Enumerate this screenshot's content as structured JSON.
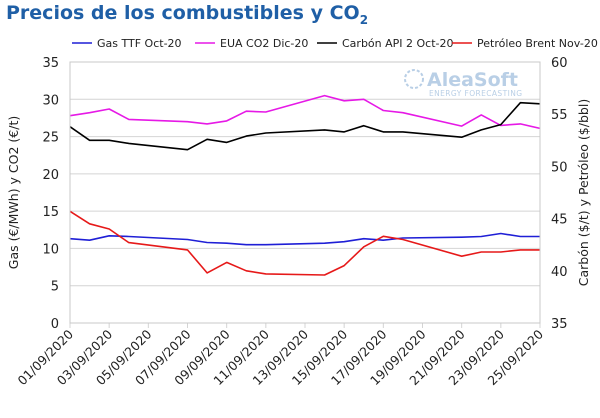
{
  "chart_data": {
    "type": "line",
    "title": "Precios de los combustibles y CO",
    "title_subscript": "2",
    "watermark": {
      "brand": "AleaSoft",
      "tagline": "ENERGY FORECASTING"
    },
    "x": [
      "01/09/2020",
      "02/09/2020",
      "03/09/2020",
      "04/09/2020",
      "07/09/2020",
      "08/09/2020",
      "09/09/2020",
      "10/09/2020",
      "11/09/2020",
      "14/09/2020",
      "15/09/2020",
      "16/09/2020",
      "17/09/2020",
      "18/09/2020",
      "21/09/2020",
      "22/09/2020",
      "23/09/2020",
      "24/09/2020",
      "25/09/2020"
    ],
    "x_tick_labels": [
      "01/09/2020",
      "03/09/2020",
      "05/09/2020",
      "07/09/2020",
      "09/09/2020",
      "11/09/2020",
      "13/09/2020",
      "15/09/2020",
      "17/09/2020",
      "19/09/2020",
      "21/09/2020",
      "23/09/2020",
      "25/09/2020"
    ],
    "xlim": [
      "01/09/2020",
      "25/09/2020"
    ],
    "ylabel_left": "Gas (€/MWh) y CO2 (€/t)",
    "ylabel_right": "Carbón ($/t) y Petróleo ($/bbl)",
    "ylim_left": [
      0,
      35
    ],
    "yticks_left": [
      0,
      5,
      10,
      15,
      20,
      25,
      30,
      35
    ],
    "ylim_right": [
      35,
      60
    ],
    "yticks_right": [
      35,
      40,
      45,
      50,
      55,
      60
    ],
    "grid": "horizontal",
    "legend_position": "top",
    "series": [
      {
        "name": "Gas TTF Oct-20",
        "axis": "left",
        "color": "#1f1fd6",
        "values": [
          11.3,
          11.1,
          11.7,
          11.6,
          11.2,
          10.8,
          10.7,
          10.5,
          10.5,
          10.7,
          10.9,
          11.3,
          11.1,
          11.4,
          11.5,
          11.6,
          12.0,
          11.6,
          11.6
        ]
      },
      {
        "name": "EUA CO2 Dic-20",
        "axis": "left",
        "color": "#e619e6",
        "values": [
          27.8,
          28.2,
          28.7,
          27.3,
          27.0,
          26.7,
          27.1,
          28.4,
          28.3,
          30.5,
          29.8,
          30.0,
          28.5,
          28.2,
          26.4,
          27.9,
          26.5,
          26.7,
          26.1
        ]
      },
      {
        "name": "Carbón API 2 Oct-20",
        "axis": "right",
        "color": "#000000",
        "values": [
          53.8,
          52.5,
          52.5,
          52.2,
          51.6,
          52.6,
          52.3,
          52.9,
          53.2,
          53.5,
          53.3,
          53.9,
          53.3,
          53.3,
          52.8,
          53.5,
          54.0,
          56.1,
          56.0
        ]
      },
      {
        "name": "Petróleo Brent Nov-20",
        "axis": "right",
        "color": "#e61919",
        "values": [
          45.7,
          44.5,
          44.0,
          42.7,
          42.0,
          39.8,
          40.8,
          40.0,
          39.7,
          39.6,
          40.5,
          42.3,
          43.3,
          43.0,
          41.4,
          41.8,
          41.8,
          42.0,
          42.0
        ]
      }
    ]
  }
}
